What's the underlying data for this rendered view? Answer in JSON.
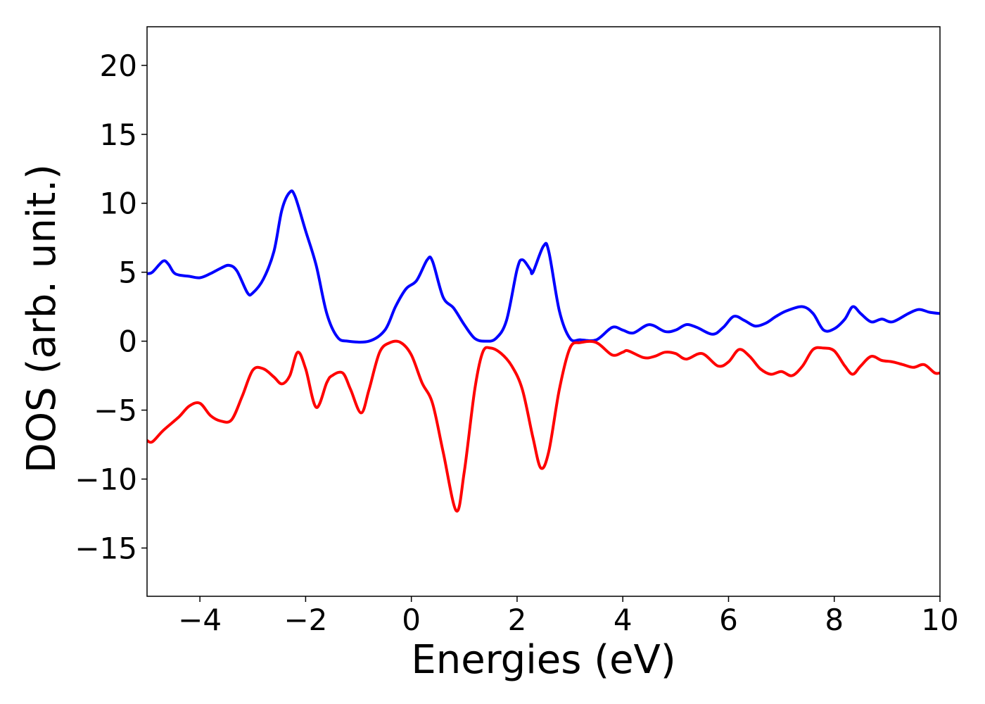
{
  "chart_data": {
    "type": "line",
    "title": "",
    "xlabel": "Energies (eV)",
    "ylabel": "DOS (arb. unit.)",
    "xlim": [
      -5,
      10
    ],
    "ylim": [
      -18.5,
      22.8
    ],
    "x_ticks": [
      -4,
      -2,
      0,
      2,
      4,
      6,
      8,
      10
    ],
    "x_tick_labels": [
      "−4",
      "−2",
      "0",
      "2",
      "4",
      "6",
      "8",
      "10"
    ],
    "y_ticks": [
      -15,
      -10,
      -5,
      0,
      5,
      10,
      15,
      20
    ],
    "y_tick_labels": [
      "−15",
      "−10",
      "−5",
      "0",
      "5",
      "10",
      "15",
      "20"
    ],
    "grid": false,
    "legend": "none",
    "series": [
      {
        "color": "#0000ff",
        "points": [
          [
            -5.0,
            4.9
          ],
          [
            -4.9,
            5.0
          ],
          [
            -4.7,
            5.8
          ],
          [
            -4.6,
            5.6
          ],
          [
            -4.5,
            5.0
          ],
          [
            -4.4,
            4.8
          ],
          [
            -4.2,
            4.7
          ],
          [
            -4.0,
            4.6
          ],
          [
            -3.8,
            4.9
          ],
          [
            -3.6,
            5.3
          ],
          [
            -3.45,
            5.5
          ],
          [
            -3.3,
            5.1
          ],
          [
            -3.1,
            3.5
          ],
          [
            -3.0,
            3.5
          ],
          [
            -2.8,
            4.5
          ],
          [
            -2.6,
            6.5
          ],
          [
            -2.45,
            9.5
          ],
          [
            -2.3,
            10.8
          ],
          [
            -2.2,
            10.5
          ],
          [
            -2.0,
            8.0
          ],
          [
            -1.8,
            5.5
          ],
          [
            -1.6,
            2.0
          ],
          [
            -1.4,
            0.3
          ],
          [
            -1.2,
            0.0
          ],
          [
            -0.8,
            0.0
          ],
          [
            -0.5,
            0.8
          ],
          [
            -0.3,
            2.5
          ],
          [
            -0.1,
            3.8
          ],
          [
            0.1,
            4.4
          ],
          [
            0.3,
            5.9
          ],
          [
            0.4,
            5.8
          ],
          [
            0.6,
            3.2
          ],
          [
            0.8,
            2.4
          ],
          [
            1.0,
            1.2
          ],
          [
            1.2,
            0.2
          ],
          [
            1.4,
            0.0
          ],
          [
            1.6,
            0.2
          ],
          [
            1.8,
            1.5
          ],
          [
            2.0,
            5.2
          ],
          [
            2.1,
            5.9
          ],
          [
            2.25,
            5.2
          ],
          [
            2.3,
            5.0
          ],
          [
            2.5,
            6.9
          ],
          [
            2.6,
            6.5
          ],
          [
            2.8,
            2.2
          ],
          [
            3.0,
            0.2
          ],
          [
            3.2,
            0.1
          ],
          [
            3.5,
            0.1
          ],
          [
            3.8,
            1.0
          ],
          [
            4.0,
            0.8
          ],
          [
            4.2,
            0.6
          ],
          [
            4.5,
            1.2
          ],
          [
            4.8,
            0.7
          ],
          [
            5.0,
            0.8
          ],
          [
            5.2,
            1.2
          ],
          [
            5.4,
            1.0
          ],
          [
            5.7,
            0.5
          ],
          [
            5.9,
            1.0
          ],
          [
            6.1,
            1.8
          ],
          [
            6.3,
            1.5
          ],
          [
            6.5,
            1.1
          ],
          [
            6.7,
            1.3
          ],
          [
            6.9,
            1.8
          ],
          [
            7.1,
            2.2
          ],
          [
            7.4,
            2.5
          ],
          [
            7.6,
            2.0
          ],
          [
            7.8,
            0.8
          ],
          [
            8.0,
            0.9
          ],
          [
            8.2,
            1.6
          ],
          [
            8.35,
            2.5
          ],
          [
            8.5,
            2.0
          ],
          [
            8.7,
            1.4
          ],
          [
            8.9,
            1.6
          ],
          [
            9.1,
            1.4
          ],
          [
            9.4,
            2.0
          ],
          [
            9.6,
            2.3
          ],
          [
            9.8,
            2.1
          ],
          [
            10.0,
            2.0
          ]
        ]
      },
      {
        "color": "#ff0000",
        "points": [
          [
            -5.0,
            -7.2
          ],
          [
            -4.9,
            -7.3
          ],
          [
            -4.7,
            -6.5
          ],
          [
            -4.4,
            -5.5
          ],
          [
            -4.2,
            -4.7
          ],
          [
            -4.0,
            -4.5
          ],
          [
            -3.8,
            -5.4
          ],
          [
            -3.6,
            -5.8
          ],
          [
            -3.4,
            -5.7
          ],
          [
            -3.2,
            -4.0
          ],
          [
            -3.0,
            -2.1
          ],
          [
            -2.8,
            -2.0
          ],
          [
            -2.6,
            -2.6
          ],
          [
            -2.45,
            -3.1
          ],
          [
            -2.3,
            -2.5
          ],
          [
            -2.15,
            -0.8
          ],
          [
            -2.0,
            -2.0
          ],
          [
            -1.8,
            -4.8
          ],
          [
            -1.6,
            -3.0
          ],
          [
            -1.5,
            -2.5
          ],
          [
            -1.3,
            -2.3
          ],
          [
            -1.15,
            -3.5
          ],
          [
            -0.95,
            -5.2
          ],
          [
            -0.8,
            -3.5
          ],
          [
            -0.6,
            -0.8
          ],
          [
            -0.4,
            -0.1
          ],
          [
            -0.2,
            -0.1
          ],
          [
            0.0,
            -1.0
          ],
          [
            0.2,
            -3.0
          ],
          [
            0.4,
            -4.5
          ],
          [
            0.6,
            -8.0
          ],
          [
            0.85,
            -12.3
          ],
          [
            1.0,
            -9.5
          ],
          [
            1.2,
            -3.5
          ],
          [
            1.35,
            -0.8
          ],
          [
            1.5,
            -0.5
          ],
          [
            1.7,
            -0.9
          ],
          [
            1.9,
            -1.8
          ],
          [
            2.1,
            -3.5
          ],
          [
            2.3,
            -7.0
          ],
          [
            2.45,
            -9.2
          ],
          [
            2.6,
            -8.0
          ],
          [
            2.8,
            -3.5
          ],
          [
            3.0,
            -0.5
          ],
          [
            3.2,
            -0.1
          ],
          [
            3.5,
            -0.1
          ],
          [
            3.8,
            -1.0
          ],
          [
            4.0,
            -0.8
          ],
          [
            4.1,
            -0.7
          ],
          [
            4.4,
            -1.2
          ],
          [
            4.6,
            -1.1
          ],
          [
            4.8,
            -0.8
          ],
          [
            5.0,
            -0.9
          ],
          [
            5.2,
            -1.3
          ],
          [
            5.5,
            -0.9
          ],
          [
            5.8,
            -1.8
          ],
          [
            6.0,
            -1.5
          ],
          [
            6.2,
            -0.6
          ],
          [
            6.4,
            -1.1
          ],
          [
            6.6,
            -2.0
          ],
          [
            6.8,
            -2.4
          ],
          [
            7.0,
            -2.2
          ],
          [
            7.2,
            -2.5
          ],
          [
            7.4,
            -1.8
          ],
          [
            7.6,
            -0.6
          ],
          [
            7.8,
            -0.5
          ],
          [
            8.0,
            -0.7
          ],
          [
            8.2,
            -1.8
          ],
          [
            8.35,
            -2.4
          ],
          [
            8.5,
            -1.8
          ],
          [
            8.7,
            -1.1
          ],
          [
            8.9,
            -1.4
          ],
          [
            9.1,
            -1.5
          ],
          [
            9.3,
            -1.7
          ],
          [
            9.5,
            -1.9
          ],
          [
            9.7,
            -1.7
          ],
          [
            9.9,
            -2.3
          ],
          [
            10.0,
            -2.3
          ]
        ]
      }
    ]
  }
}
